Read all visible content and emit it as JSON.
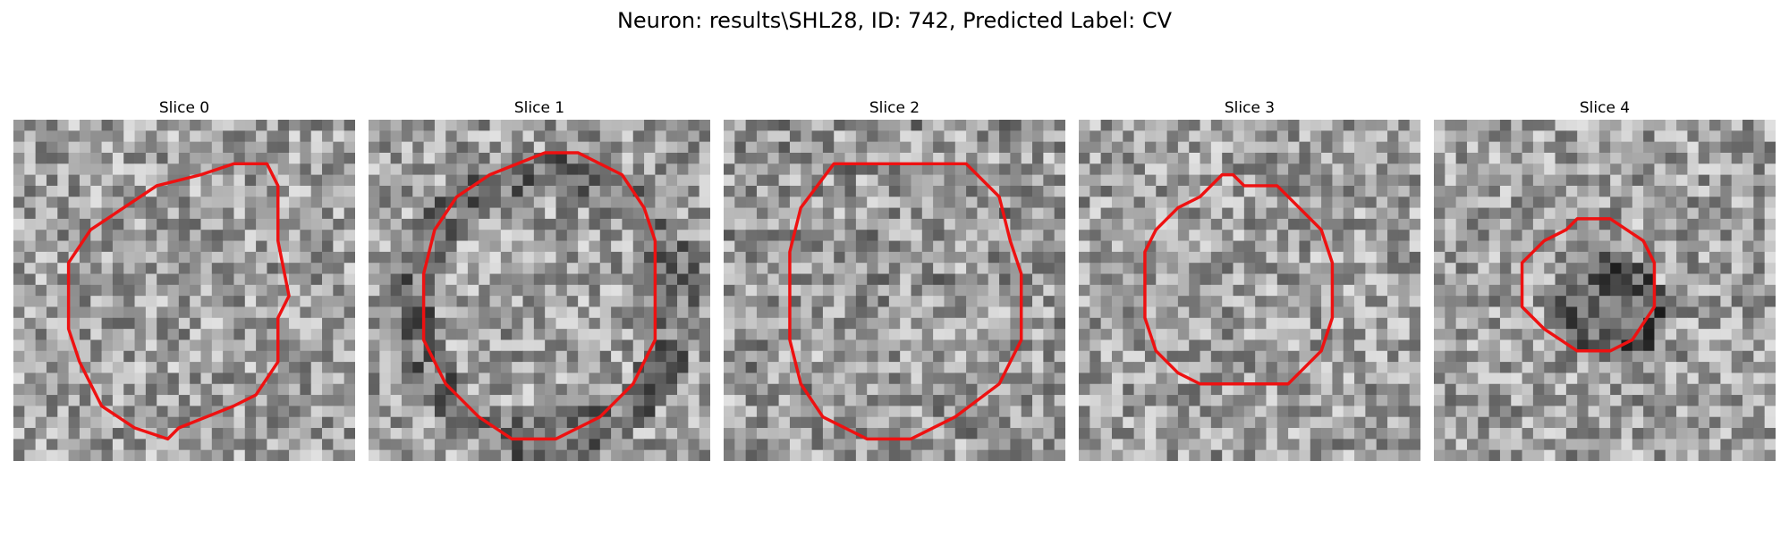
{
  "figure": {
    "title": "Neuron: results\\SHL28, ID: 742, Predicted Label: CV"
  },
  "outline_color": "#ee1111",
  "slices": [
    {
      "title": "Slice 0",
      "dark_region": "none",
      "outline": [
        [
          20,
          4
        ],
        [
          23,
          4
        ],
        [
          24,
          6
        ],
        [
          24,
          11
        ],
        [
          25,
          16
        ],
        [
          24,
          18
        ],
        [
          24,
          22
        ],
        [
          22,
          25
        ],
        [
          20,
          26
        ],
        [
          15,
          28
        ],
        [
          14,
          29
        ],
        [
          11,
          28
        ],
        [
          8,
          26
        ],
        [
          6,
          22
        ],
        [
          5,
          19
        ],
        [
          5,
          13
        ],
        [
          7,
          10
        ],
        [
          10,
          8
        ],
        [
          13,
          6
        ],
        [
          17,
          5
        ]
      ]
    },
    {
      "title": "Slice 1",
      "dark_region": "ring",
      "outline": [
        [
          16,
          3
        ],
        [
          19,
          3
        ],
        [
          23,
          5
        ],
        [
          25,
          8
        ],
        [
          26,
          11
        ],
        [
          26,
          16
        ],
        [
          26,
          20
        ],
        [
          24,
          24
        ],
        [
          21,
          27
        ],
        [
          17,
          29
        ],
        [
          13,
          29
        ],
        [
          10,
          27
        ],
        [
          7,
          24
        ],
        [
          5,
          20
        ],
        [
          5,
          14
        ],
        [
          6,
          10
        ],
        [
          8,
          7
        ],
        [
          11,
          5
        ]
      ]
    },
    {
      "title": "Slice 2",
      "dark_region": "none",
      "outline": [
        [
          10,
          4
        ],
        [
          22,
          4
        ],
        [
          25,
          7
        ],
        [
          26,
          11
        ],
        [
          27,
          14
        ],
        [
          27,
          20
        ],
        [
          25,
          24
        ],
        [
          21,
          27
        ],
        [
          17,
          29
        ],
        [
          13,
          29
        ],
        [
          9,
          27
        ],
        [
          7,
          24
        ],
        [
          6,
          20
        ],
        [
          6,
          12
        ],
        [
          7,
          8
        ]
      ]
    },
    {
      "title": "Slice 3",
      "dark_region": "none",
      "outline": [
        [
          12,
          6
        ],
        [
          13,
          5
        ],
        [
          14,
          5
        ],
        [
          15,
          6
        ],
        [
          18,
          6
        ],
        [
          20,
          8
        ],
        [
          22,
          10
        ],
        [
          23,
          13
        ],
        [
          23,
          18
        ],
        [
          22,
          21
        ],
        [
          20,
          23
        ],
        [
          19,
          24
        ],
        [
          11,
          24
        ],
        [
          9,
          23
        ],
        [
          7,
          21
        ],
        [
          6,
          18
        ],
        [
          6,
          12
        ],
        [
          7,
          10
        ],
        [
          9,
          8
        ],
        [
          11,
          7
        ]
      ]
    },
    {
      "title": "Slice 4",
      "dark_region": "center",
      "outline": [
        [
          13,
          9
        ],
        [
          16,
          9
        ],
        [
          19,
          11
        ],
        [
          20,
          13
        ],
        [
          20,
          17
        ],
        [
          18,
          20
        ],
        [
          16,
          21
        ],
        [
          13,
          21
        ],
        [
          10,
          19
        ],
        [
          8,
          17
        ],
        [
          8,
          13
        ],
        [
          10,
          11
        ],
        [
          12,
          10
        ]
      ]
    }
  ]
}
